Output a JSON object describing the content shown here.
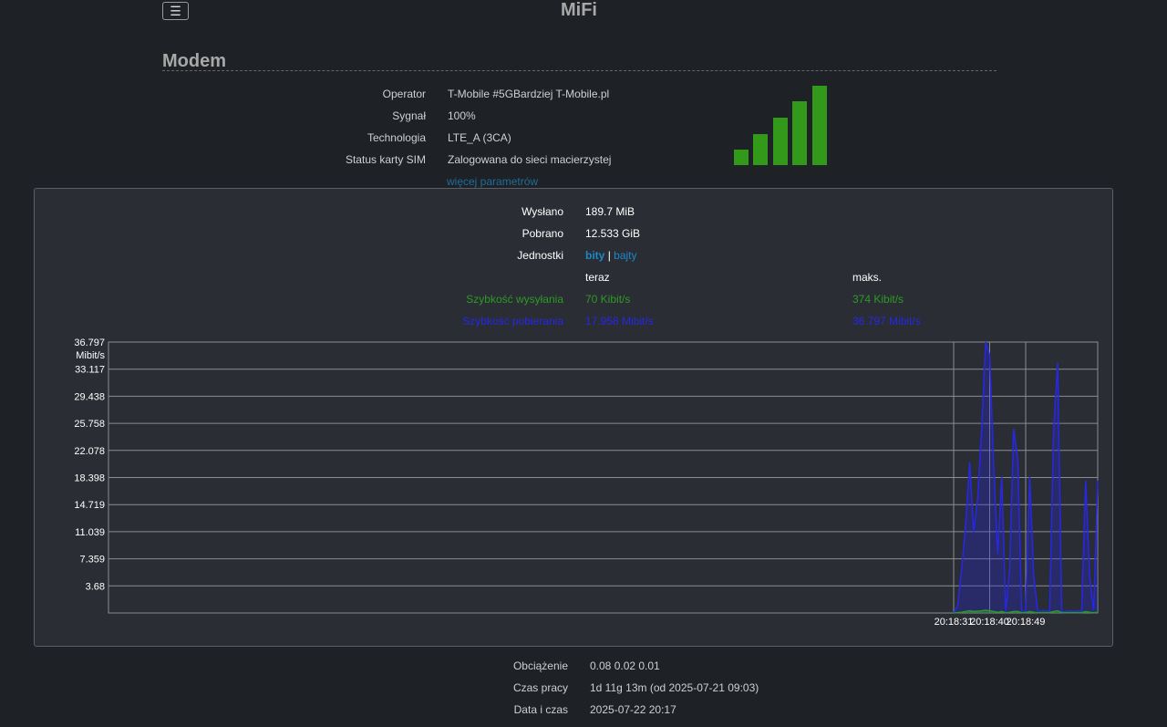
{
  "header": {
    "menu_icon": "☰",
    "title": "MiFi"
  },
  "modem": {
    "section_title": "Modem",
    "rows": [
      {
        "label": "Operator",
        "value": "T-Mobile #5GBardziej T-Mobile.pl"
      },
      {
        "label": "Sygnał",
        "value": "100%"
      },
      {
        "label": "Technologia",
        "value": "LTE_A (3CA)"
      },
      {
        "label": "Status karty SIM",
        "value": "Zalogowana do sieci macierzystej"
      }
    ],
    "more_link": "więcej parametrów",
    "signal_bars": 5,
    "signal_color": "#33991a"
  },
  "traffic": {
    "sent_label": "Wysłano",
    "sent_value": "189.7 MiB",
    "received_label": "Pobrano",
    "received_value": "12.533 GiB",
    "units_label": "Jednostki",
    "unit_bits": "bity",
    "unit_separator": "|",
    "unit_bytes": "bajty",
    "now_header": "teraz",
    "max_header": "maks.",
    "upload_label": "Szybkość wysyłania",
    "upload_now": "70 Kibit/s",
    "upload_max": "374 Kibit/s",
    "download_label": "Szybkość pobierania",
    "download_now": "17.958 Mibit/s",
    "download_max": "36.797 Mibit/s",
    "upload_color": "#2e9a26",
    "download_color": "#2727e6"
  },
  "chart_data": {
    "type": "area",
    "y_unit": "Mibit/s",
    "ylim": [
      0,
      36.797
    ],
    "y_ticks": [
      "36.797",
      "33.117",
      "29.438",
      "25.758",
      "22.078",
      "18.398",
      "14.719",
      "11.039",
      "7.359",
      "3.68"
    ],
    "x_ticks": [
      "20:18:31",
      "20:18:40",
      "20:18:49"
    ],
    "grid": true,
    "series": [
      {
        "name": "Szybkość pobierania",
        "color": "#2727e6",
        "values": [
          0,
          1.0,
          6.0,
          12.0,
          20.5,
          11.0,
          15.5,
          25.0,
          36.8,
          35.0,
          20.0,
          8.0,
          18.5,
          0.2,
          6.0,
          25.0,
          21.0,
          0.3,
          0.3,
          18.5,
          5.0,
          0.3,
          0.3,
          0.3,
          0.2,
          25.0,
          34.0,
          0.2,
          0.2,
          0.3,
          0.2,
          0.3,
          0.2,
          18.0,
          5.0,
          0.3,
          18.0
        ]
      },
      {
        "name": "Szybkość wysyłania",
        "color": "#2e9a26",
        "values": [
          0,
          0.05,
          0.1,
          0.2,
          0.3,
          0.2,
          0.25,
          0.3,
          0.37,
          0.3,
          0.2,
          0.1,
          0.2,
          0.05,
          0.1,
          0.2,
          0.2,
          0.05,
          0.05,
          0.2,
          0.1,
          0.05,
          0.05,
          0.05,
          0.05,
          0.2,
          0.3,
          0.05,
          0.05,
          0.05,
          0.05,
          0.05,
          0.05,
          0.2,
          0.1,
          0.05,
          0.07
        ]
      }
    ]
  },
  "system": {
    "rows": [
      {
        "label": "Obciążenie",
        "value": "0.08 0.02 0.01"
      },
      {
        "label": "Czas pracy",
        "value": "1d 11g 13m (od 2025-07-21 09:03)"
      },
      {
        "label": "Data i czas",
        "value": "2025-07-22 20:17"
      }
    ]
  }
}
